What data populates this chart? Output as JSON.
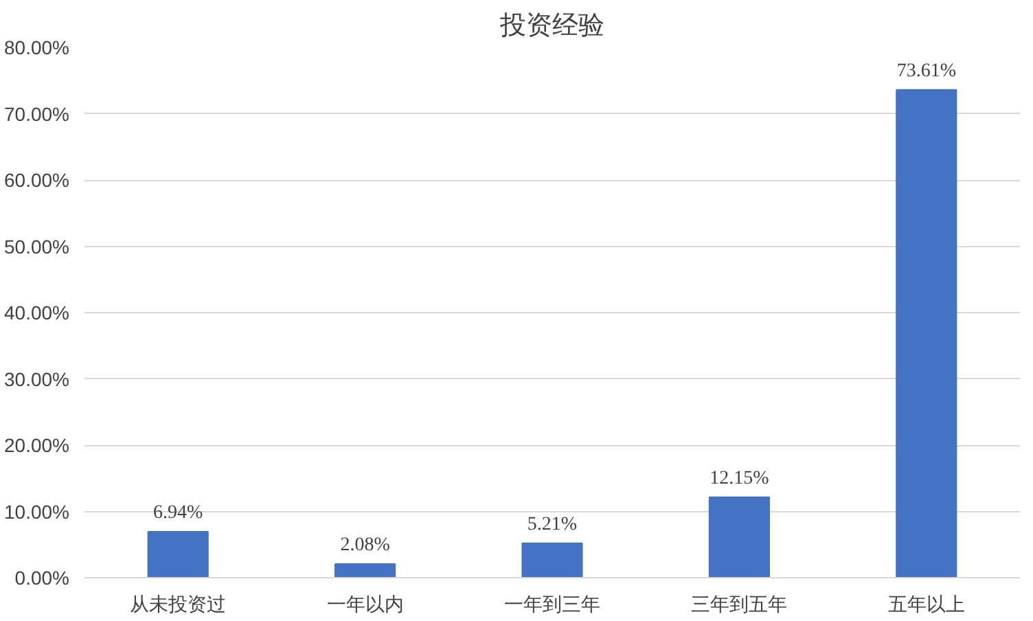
{
  "chart_data": {
    "type": "bar",
    "title": "投资经验",
    "categories": [
      "从未投资过",
      "一年以内",
      "一年到三年",
      "三年到五年",
      "五年以上"
    ],
    "values": [
      6.94,
      2.08,
      5.21,
      12.15,
      73.61
    ],
    "value_labels": [
      "6.94%",
      "2.08%",
      "5.21%",
      "12.15%",
      "73.61%"
    ],
    "color": "#4472c4",
    "ylim": [
      0,
      80
    ],
    "yticks": [
      {
        "value": 0,
        "label": "0.00%"
      },
      {
        "value": 10,
        "label": "10.00%"
      },
      {
        "value": 20,
        "label": "20.00%"
      },
      {
        "value": 30,
        "label": "30.00%"
      },
      {
        "value": 40,
        "label": "40.00%"
      },
      {
        "value": 50,
        "label": "50.00%"
      },
      {
        "value": 60,
        "label": "60.00%"
      },
      {
        "value": 70,
        "label": "70.00%"
      },
      {
        "value": 80,
        "label": "80.00%"
      }
    ],
    "grid": "y"
  }
}
